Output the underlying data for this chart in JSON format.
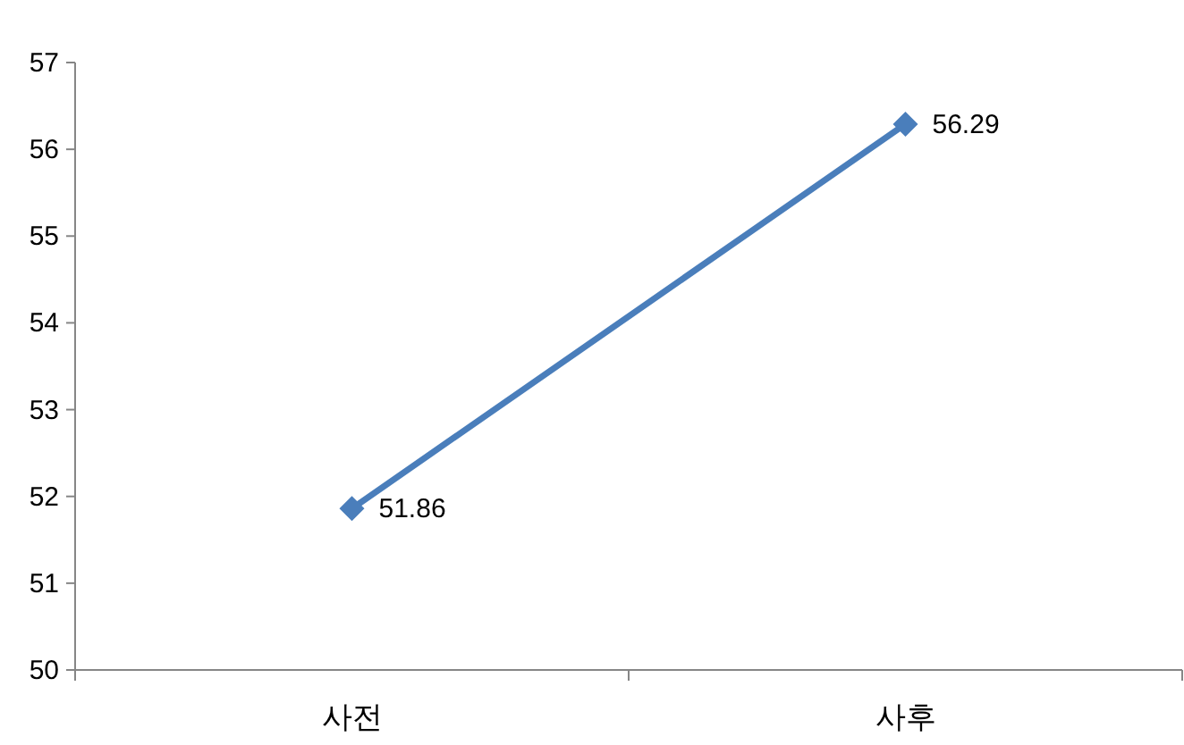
{
  "chart_data": {
    "type": "line",
    "categories": [
      "사전",
      "사후"
    ],
    "series": [
      {
        "color": "#4a7ebb",
        "values": [
          51.86,
          56.29
        ]
      }
    ],
    "ylim": [
      50,
      57
    ],
    "yticks": [
      50,
      51,
      52,
      53,
      54,
      55,
      56,
      57
    ],
    "data_labels": true,
    "marker": "diamond",
    "line_style": "solid",
    "grid": false
  }
}
